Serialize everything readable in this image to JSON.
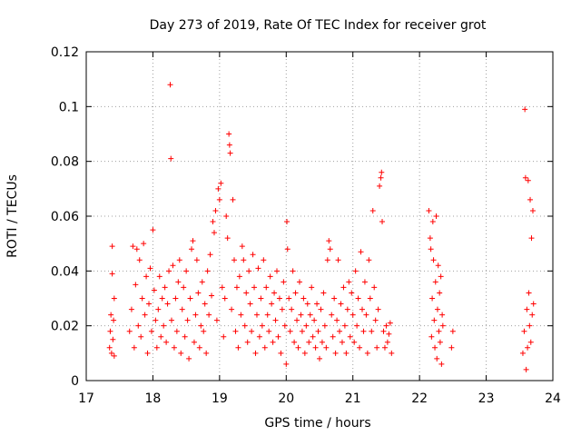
{
  "chart_data": {
    "type": "scatter",
    "title": "Day 273 of 2019, Rate Of TEC Index for receiver grot",
    "xlabel": "GPS time / hours",
    "ylabel": "ROTI / TECUs",
    "xlim": [
      17,
      24
    ],
    "ylim": [
      0,
      0.12
    ],
    "x_ticks": [
      17,
      18,
      19,
      20,
      21,
      22,
      23,
      24
    ],
    "x_tick_labels": [
      "17",
      "18",
      "19",
      "20",
      "21",
      "22",
      "23",
      "24"
    ],
    "y_ticks": [
      0,
      0.02,
      0.04,
      0.06,
      0.08,
      0.1,
      0.12
    ],
    "y_tick_labels": [
      "0",
      "0.02",
      "0.04",
      "0.06",
      "0.08",
      "0.1",
      "0.12"
    ],
    "grid": true,
    "marker": "plus",
    "series_color": "#ff0000",
    "series": [
      {
        "name": "ROTI",
        "points": [
          [
            17.35,
            0.012
          ],
          [
            17.36,
            0.018
          ],
          [
            17.37,
            0.024
          ],
          [
            17.38,
            0.01
          ],
          [
            17.39,
            0.049
          ],
          [
            17.39,
            0.039
          ],
          [
            17.4,
            0.015
          ],
          [
            17.41,
            0.022
          ],
          [
            17.42,
            0.03
          ],
          [
            17.42,
            0.009
          ],
          [
            17.65,
            0.018
          ],
          [
            17.68,
            0.026
          ],
          [
            17.7,
            0.049
          ],
          [
            17.72,
            0.012
          ],
          [
            17.74,
            0.035
          ],
          [
            17.76,
            0.048
          ],
          [
            17.78,
            0.02
          ],
          [
            17.8,
            0.044
          ],
          [
            17.82,
            0.016
          ],
          [
            17.84,
            0.03
          ],
          [
            17.86,
            0.05
          ],
          [
            17.88,
            0.024
          ],
          [
            17.9,
            0.038
          ],
          [
            17.92,
            0.01
          ],
          [
            17.94,
            0.028
          ],
          [
            17.96,
            0.041
          ],
          [
            17.98,
            0.018
          ],
          [
            18.0,
            0.055
          ],
          [
            18.02,
            0.033
          ],
          [
            18.04,
            0.022
          ],
          [
            18.06,
            0.012
          ],
          [
            18.08,
            0.026
          ],
          [
            18.1,
            0.038
          ],
          [
            18.12,
            0.016
          ],
          [
            18.14,
            0.03
          ],
          [
            18.16,
            0.02
          ],
          [
            18.18,
            0.034
          ],
          [
            18.2,
            0.014
          ],
          [
            18.22,
            0.028
          ],
          [
            18.24,
            0.04
          ],
          [
            18.26,
            0.108
          ],
          [
            18.27,
            0.081
          ],
          [
            18.28,
            0.022
          ],
          [
            18.3,
            0.042
          ],
          [
            18.32,
            0.012
          ],
          [
            18.34,
            0.03
          ],
          [
            18.36,
            0.018
          ],
          [
            18.38,
            0.036
          ],
          [
            18.4,
            0.044
          ],
          [
            18.42,
            0.01
          ],
          [
            18.44,
            0.026
          ],
          [
            18.46,
            0.034
          ],
          [
            18.48,
            0.016
          ],
          [
            18.5,
            0.04
          ],
          [
            18.52,
            0.022
          ],
          [
            18.54,
            0.008
          ],
          [
            18.56,
            0.03
          ],
          [
            18.58,
            0.048
          ],
          [
            18.6,
            0.051
          ],
          [
            18.62,
            0.014
          ],
          [
            18.64,
            0.024
          ],
          [
            18.66,
            0.044
          ],
          [
            18.68,
            0.032
          ],
          [
            18.7,
            0.012
          ],
          [
            18.72,
            0.02
          ],
          [
            18.74,
            0.036
          ],
          [
            18.76,
            0.018
          ],
          [
            18.78,
            0.028
          ],
          [
            18.8,
            0.01
          ],
          [
            18.82,
            0.04
          ],
          [
            18.84,
            0.024
          ],
          [
            18.86,
            0.046
          ],
          [
            18.88,
            0.031
          ],
          [
            18.9,
            0.058
          ],
          [
            18.92,
            0.054
          ],
          [
            18.94,
            0.062
          ],
          [
            18.96,
            0.022
          ],
          [
            18.98,
            0.07
          ],
          [
            19.0,
            0.066
          ],
          [
            19.02,
            0.072
          ],
          [
            19.04,
            0.034
          ],
          [
            19.06,
            0.016
          ],
          [
            19.08,
            0.03
          ],
          [
            19.1,
            0.06
          ],
          [
            19.12,
            0.052
          ],
          [
            19.14,
            0.09
          ],
          [
            19.15,
            0.086
          ],
          [
            19.16,
            0.083
          ],
          [
            19.18,
            0.026
          ],
          [
            19.2,
            0.066
          ],
          [
            19.22,
            0.044
          ],
          [
            19.24,
            0.018
          ],
          [
            19.26,
            0.034
          ],
          [
            19.28,
            0.012
          ],
          [
            19.3,
            0.038
          ],
          [
            19.32,
            0.024
          ],
          [
            19.34,
            0.049
          ],
          [
            19.36,
            0.044
          ],
          [
            19.38,
            0.02
          ],
          [
            19.4,
            0.032
          ],
          [
            19.42,
            0.014
          ],
          [
            19.44,
            0.04
          ],
          [
            19.46,
            0.028
          ],
          [
            19.48,
            0.018
          ],
          [
            19.5,
            0.046
          ],
          [
            19.52,
            0.034
          ],
          [
            19.54,
            0.01
          ],
          [
            19.56,
            0.024
          ],
          [
            19.58,
            0.041
          ],
          [
            19.6,
            0.016
          ],
          [
            19.62,
            0.03
          ],
          [
            19.64,
            0.02
          ],
          [
            19.66,
            0.044
          ],
          [
            19.68,
            0.012
          ],
          [
            19.7,
            0.034
          ],
          [
            19.72,
            0.024
          ],
          [
            19.74,
            0.018
          ],
          [
            19.76,
            0.038
          ],
          [
            19.78,
            0.028
          ],
          [
            19.8,
            0.014
          ],
          [
            19.82,
            0.032
          ],
          [
            19.84,
            0.022
          ],
          [
            19.86,
            0.04
          ],
          [
            19.88,
            0.016
          ],
          [
            19.9,
            0.03
          ],
          [
            19.92,
            0.01
          ],
          [
            19.94,
            0.026
          ],
          [
            19.96,
            0.036
          ],
          [
            19.98,
            0.02
          ],
          [
            20.0,
            0.006
          ],
          [
            20.01,
            0.058
          ],
          [
            20.02,
            0.048
          ],
          [
            20.04,
            0.03
          ],
          [
            20.06,
            0.018
          ],
          [
            20.08,
            0.026
          ],
          [
            20.1,
            0.04
          ],
          [
            20.12,
            0.014
          ],
          [
            20.14,
            0.032
          ],
          [
            20.16,
            0.022
          ],
          [
            20.18,
            0.012
          ],
          [
            20.2,
            0.036
          ],
          [
            20.22,
            0.024
          ],
          [
            20.24,
            0.018
          ],
          [
            20.26,
            0.03
          ],
          [
            20.28,
            0.01
          ],
          [
            20.3,
            0.02
          ],
          [
            20.32,
            0.028
          ],
          [
            20.34,
            0.014
          ],
          [
            20.36,
            0.024
          ],
          [
            20.38,
            0.034
          ],
          [
            20.4,
            0.016
          ],
          [
            20.42,
            0.022
          ],
          [
            20.44,
            0.012
          ],
          [
            20.46,
            0.028
          ],
          [
            20.48,
            0.018
          ],
          [
            20.5,
            0.008
          ],
          [
            20.52,
            0.026
          ],
          [
            20.54,
            0.014
          ],
          [
            20.56,
            0.032
          ],
          [
            20.58,
            0.02
          ],
          [
            20.6,
            0.012
          ],
          [
            20.62,
            0.044
          ],
          [
            20.64,
            0.051
          ],
          [
            20.66,
            0.048
          ],
          [
            20.68,
            0.024
          ],
          [
            20.7,
            0.016
          ],
          [
            20.72,
            0.03
          ],
          [
            20.74,
            0.01
          ],
          [
            20.76,
            0.022
          ],
          [
            20.78,
            0.044
          ],
          [
            20.8,
            0.018
          ],
          [
            20.82,
            0.028
          ],
          [
            20.84,
            0.014
          ],
          [
            20.86,
            0.034
          ],
          [
            20.88,
            0.02
          ],
          [
            20.9,
            0.01
          ],
          [
            20.92,
            0.026
          ],
          [
            20.94,
            0.036
          ],
          [
            20.96,
            0.016
          ],
          [
            20.98,
            0.032
          ],
          [
            21.0,
            0.024
          ],
          [
            21.02,
            0.014
          ],
          [
            21.04,
            0.04
          ],
          [
            21.06,
            0.02
          ],
          [
            21.08,
            0.03
          ],
          [
            21.1,
            0.012
          ],
          [
            21.12,
            0.047
          ],
          [
            21.14,
            0.026
          ],
          [
            21.16,
            0.018
          ],
          [
            21.18,
            0.036
          ],
          [
            21.2,
            0.024
          ],
          [
            21.22,
            0.01
          ],
          [
            21.24,
            0.044
          ],
          [
            21.26,
            0.03
          ],
          [
            21.28,
            0.018
          ],
          [
            21.3,
            0.062
          ],
          [
            21.32,
            0.034
          ],
          [
            21.34,
            0.022
          ],
          [
            21.36,
            0.012
          ],
          [
            21.38,
            0.026
          ],
          [
            21.4,
            0.071
          ],
          [
            21.42,
            0.074
          ],
          [
            21.43,
            0.076
          ],
          [
            21.44,
            0.058
          ],
          [
            21.46,
            0.018
          ],
          [
            21.48,
            0.012
          ],
          [
            21.5,
            0.02
          ],
          [
            21.52,
            0.014
          ],
          [
            21.54,
            0.017
          ],
          [
            21.56,
            0.021
          ],
          [
            21.58,
            0.01
          ],
          [
            22.14,
            0.062
          ],
          [
            22.16,
            0.052
          ],
          [
            22.17,
            0.048
          ],
          [
            22.18,
            0.016
          ],
          [
            22.19,
            0.03
          ],
          [
            22.2,
            0.058
          ],
          [
            22.21,
            0.044
          ],
          [
            22.22,
            0.022
          ],
          [
            22.23,
            0.012
          ],
          [
            22.24,
            0.036
          ],
          [
            22.25,
            0.06
          ],
          [
            22.26,
            0.008
          ],
          [
            22.27,
            0.026
          ],
          [
            22.28,
            0.042
          ],
          [
            22.29,
            0.018
          ],
          [
            22.3,
            0.032
          ],
          [
            22.31,
            0.014
          ],
          [
            22.32,
            0.038
          ],
          [
            22.33,
            0.006
          ],
          [
            22.34,
            0.024
          ],
          [
            22.35,
            0.02
          ],
          [
            22.48,
            0.012
          ],
          [
            22.5,
            0.018
          ],
          [
            23.55,
            0.01
          ],
          [
            23.57,
            0.018
          ],
          [
            23.58,
            0.099
          ],
          [
            23.59,
            0.074
          ],
          [
            23.6,
            0.004
          ],
          [
            23.61,
            0.026
          ],
          [
            23.62,
            0.012
          ],
          [
            23.63,
            0.073
          ],
          [
            23.64,
            0.032
          ],
          [
            23.65,
            0.02
          ],
          [
            23.66,
            0.066
          ],
          [
            23.67,
            0.014
          ],
          [
            23.68,
            0.052
          ],
          [
            23.69,
            0.024
          ],
          [
            23.7,
            0.062
          ],
          [
            23.71,
            0.028
          ]
        ]
      }
    ]
  }
}
